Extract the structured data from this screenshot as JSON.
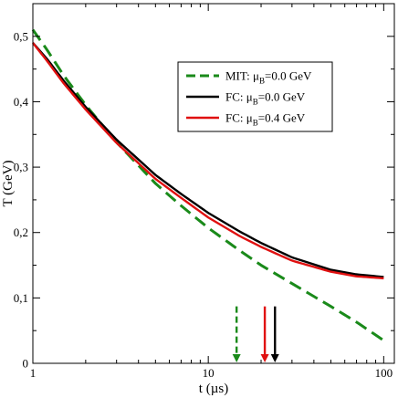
{
  "chart_data": {
    "type": "line",
    "xlabel": "t (µs)",
    "ylabel": "T (GeV)",
    "xscale": "log",
    "xlim": [
      1,
      115
    ],
    "ylim": [
      0,
      0.55
    ],
    "xticks": [
      {
        "value": 1,
        "label": "1"
      },
      {
        "value": 10,
        "label": "10"
      },
      {
        "value": 100,
        "label": "100"
      }
    ],
    "yticks": [
      {
        "value": 0,
        "label": "0"
      },
      {
        "value": 0.1,
        "label": "0,1"
      },
      {
        "value": 0.2,
        "label": "0,2"
      },
      {
        "value": 0.3,
        "label": "0,3"
      },
      {
        "value": 0.4,
        "label": "0,4"
      },
      {
        "value": 0.5,
        "label": "0,5"
      }
    ],
    "grid": false,
    "legend_position": "top-right",
    "series": [
      {
        "name": "MIT: μB=0.0 GeV",
        "legend_main": "MIT: μ",
        "legend_sub": "B",
        "legend_rest": "=0.0 GeV",
        "color": "#1a8a1a",
        "dash": "dashed",
        "x": [
          1,
          1.2,
          1.5,
          2,
          3,
          5,
          7,
          10,
          15,
          20,
          30,
          50,
          70,
          100
        ],
        "y": [
          0.51,
          0.48,
          0.44,
          0.395,
          0.338,
          0.275,
          0.241,
          0.207,
          0.173,
          0.15,
          0.122,
          0.087,
          0.063,
          0.035
        ]
      },
      {
        "name": "FC: μB=0.0 GeV",
        "legend_main": "FC: μ",
        "legend_sub": "B",
        "legend_rest": "=0.0 GeV",
        "color": "#000000",
        "dash": "solid",
        "x": [
          1,
          1.2,
          1.5,
          2,
          3,
          5,
          7,
          10,
          15,
          20,
          30,
          50,
          70,
          100
        ],
        "y": [
          0.49,
          0.466,
          0.432,
          0.392,
          0.342,
          0.288,
          0.259,
          0.23,
          0.202,
          0.184,
          0.162,
          0.143,
          0.136,
          0.132
        ]
      },
      {
        "name": "FC: μB=0.4 GeV",
        "legend_main": "FC: μ",
        "legend_sub": "B",
        "legend_rest": "=0.4 GeV",
        "color": "#e01010",
        "dash": "solid",
        "x": [
          1,
          1.2,
          1.5,
          2,
          3,
          5,
          7,
          10,
          15,
          20,
          30,
          50,
          70,
          100
        ],
        "y": [
          0.49,
          0.463,
          0.428,
          0.388,
          0.337,
          0.282,
          0.253,
          0.223,
          0.195,
          0.178,
          0.157,
          0.14,
          0.133,
          0.13
        ]
      }
    ],
    "arrows": [
      {
        "x": 14.5,
        "y_top": 0.087,
        "y_bottom": 0.0,
        "color": "#1a8a1a",
        "dash": "dashed"
      },
      {
        "x": 21,
        "y_top": 0.087,
        "y_bottom": 0.0,
        "color": "#e01010",
        "dash": "solid"
      },
      {
        "x": 24,
        "y_top": 0.087,
        "y_bottom": 0.0,
        "color": "#000000",
        "dash": "solid"
      }
    ]
  }
}
